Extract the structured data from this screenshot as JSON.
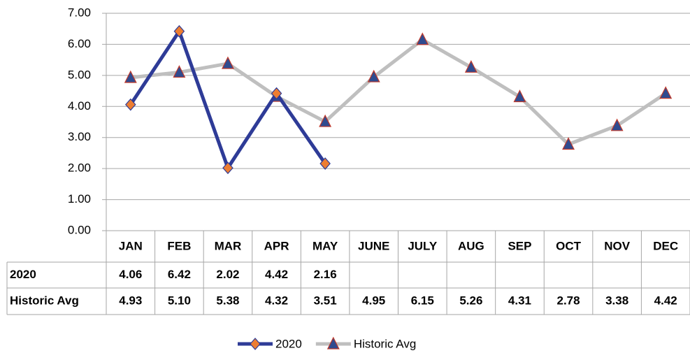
{
  "chart_data": {
    "type": "line",
    "categories": [
      "JAN",
      "FEB",
      "MAR",
      "APR",
      "MAY",
      "JUNE",
      "JULY",
      "AUG",
      "SEP",
      "OCT",
      "NOV",
      "DEC"
    ],
    "series": [
      {
        "name": "2020",
        "color": "#2e3b97",
        "marker": "diamond",
        "marker_color": "#ed7d31",
        "values": [
          4.06,
          6.42,
          2.02,
          4.42,
          2.16,
          null,
          null,
          null,
          null,
          null,
          null,
          null
        ],
        "value_labels": [
          "4.06",
          "6.42",
          "2.02",
          "4.42",
          "2.16",
          null,
          null,
          null,
          null,
          null,
          null,
          null
        ]
      },
      {
        "name": "Historic Avg",
        "color": "#bfbfbf",
        "marker": "triangle",
        "marker_color": "#2f4b8f",
        "values": [
          4.93,
          5.1,
          5.38,
          4.32,
          3.51,
          4.95,
          6.15,
          5.26,
          4.31,
          2.78,
          3.38,
          4.42
        ],
        "value_labels": [
          "4.93",
          "5.10",
          "5.38",
          "4.32",
          "3.51",
          "4.95",
          "6.15",
          "5.26",
          "4.31",
          "2.78",
          "3.38",
          "4.42"
        ]
      }
    ],
    "ylim": [
      0,
      7
    ],
    "yticks": [
      {
        "value": 0,
        "label": "0.00"
      },
      {
        "value": 1,
        "label": "1.00"
      },
      {
        "value": 2,
        "label": "2.00"
      },
      {
        "value": 3,
        "label": "3.00"
      },
      {
        "value": 4,
        "label": "4.00"
      },
      {
        "value": 5,
        "label": "5.00"
      },
      {
        "value": 6,
        "label": "6.00"
      },
      {
        "value": 7,
        "label": "7.00"
      }
    ],
    "grid": true,
    "data_table": true,
    "legend": "bottom"
  }
}
